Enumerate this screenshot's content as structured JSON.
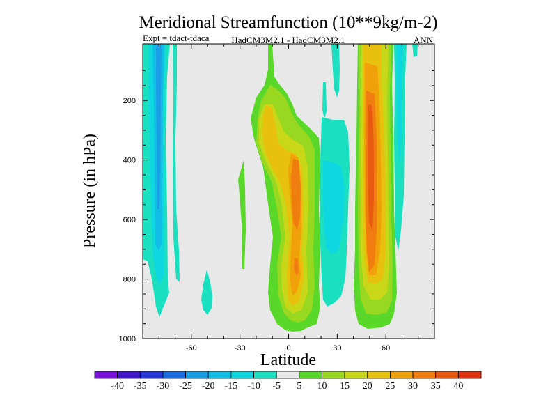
{
  "chart_data": {
    "type": "contour",
    "title": "Meridional Streamfunction (10**9kg/m-2)",
    "subtitle_left": "Expt = tdact-tdaca",
    "subtitle_center": "HadCM3M2.1 - HadCM3M2.1",
    "subtitle_right": "ANN",
    "xlabel": "Latitude",
    "ylabel": "Pressure (in hPa)",
    "xlim": [
      -90,
      90
    ],
    "ylim": [
      1000,
      10
    ],
    "x_ticks": [
      -60,
      -30,
      0,
      30,
      60
    ],
    "x_tick_labels": [
      "-60",
      "-30",
      "0",
      "30",
      "60"
    ],
    "y_ticks": [
      200,
      400,
      600,
      800,
      1000
    ],
    "y_tick_labels": [
      "200",
      "400",
      "600",
      "800",
      "1000"
    ],
    "levels": [
      -40,
      -35,
      -30,
      -25,
      -20,
      -15,
      -10,
      -5,
      5,
      10,
      15,
      20,
      25,
      30,
      35,
      40
    ],
    "colorbar_labels": [
      "-40",
      "-35",
      "-30",
      "-25",
      "-20",
      "-15",
      "-10",
      "-5",
      "5",
      "10",
      "15",
      "20",
      "25",
      "30",
      "35",
      "40"
    ],
    "colors": [
      "#7a12dc",
      "#4419cc",
      "#2a38d8",
      "#1e6de0",
      "#1a9ee6",
      "#12bde6",
      "#0ed7e0",
      "#1be0c0",
      "#e8e8e8",
      "#5ad82a",
      "#98d820",
      "#c8d818",
      "#e8c00e",
      "#f0a008",
      "#f07d10",
      "#e85a10",
      "#e03210"
    ],
    "background_value_range": [
      -5,
      5
    ],
    "features": [
      {
        "name": "southern-cell-negative",
        "center_lat": -80,
        "pressure_range": [
          50,
          880
        ],
        "min_value": -22
      },
      {
        "name": "southern-isolated-negative",
        "center_lat": -50,
        "pressure_range": [
          830,
          910
        ],
        "min_value": -8
      },
      {
        "name": "tropical-positive-cell",
        "center_lat": 5,
        "pressure_range": [
          40,
          960
        ],
        "max_value": 33
      },
      {
        "name": "equatorial-negative-cell",
        "center_lat": 28,
        "pressure_range": [
          150,
          900
        ],
        "min_value": -12
      },
      {
        "name": "northern-positive-cell",
        "center_lat": 50,
        "pressure_range": [
          20,
          965
        ],
        "max_value": 35
      },
      {
        "name": "northern-negative-cell",
        "center_lat": 68,
        "pressure_range": [
          30,
          700
        ],
        "min_value": -12
      }
    ]
  }
}
